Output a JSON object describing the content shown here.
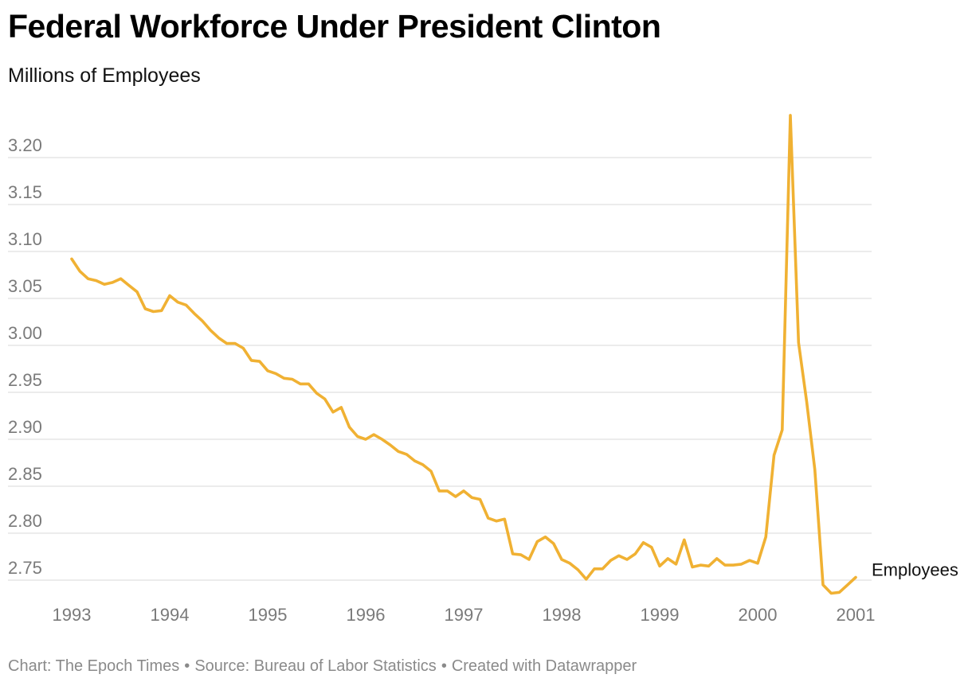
{
  "header": {
    "title": "Federal Workforce Under President Clinton",
    "subtitle": "Millions of Employees"
  },
  "footer": {
    "chart_credit": "Chart: The Epoch Times",
    "source": "Source: Bureau of Labor Statistics",
    "tool": "Created with Datawrapper",
    "separator": "•"
  },
  "colors": {
    "line": "#f0b133",
    "grid": "#e1e1e1",
    "tick_text": "#7a7a7a"
  },
  "chart_data": {
    "type": "line",
    "title": "Federal Workforce Under President Clinton",
    "subtitle": "Millions of Employees",
    "xlabel": "",
    "ylabel": "",
    "xlim": [
      1993,
      2001
    ],
    "ylim": [
      2.73,
      3.25
    ],
    "x_ticks": [
      "1993",
      "1994",
      "1995",
      "1996",
      "1997",
      "1998",
      "1999",
      "2000",
      "2001"
    ],
    "y_ticks": [
      "3.20",
      "3.15",
      "3.10",
      "3.05",
      "3.00",
      "2.95",
      "2.90",
      "2.85",
      "2.80",
      "2.75"
    ],
    "grid": true,
    "legend": "none (series label at end of line)",
    "series": [
      {
        "name": "Employees",
        "values": [
          3.092,
          3.079,
          3.071,
          3.069,
          3.065,
          3.067,
          3.071,
          3.064,
          3.057,
          3.039,
          3.036,
          3.037,
          3.053,
          3.046,
          3.043,
          3.034,
          3.026,
          3.016,
          3.008,
          3.002,
          3.002,
          2.997,
          2.984,
          2.983,
          2.973,
          2.97,
          2.965,
          2.964,
          2.959,
          2.959,
          2.949,
          2.943,
          2.929,
          2.934,
          2.913,
          2.903,
          2.9,
          2.905,
          2.9,
          2.894,
          2.887,
          2.884,
          2.877,
          2.873,
          2.866,
          2.845,
          2.845,
          2.839,
          2.845,
          2.838,
          2.836,
          2.816,
          2.813,
          2.815,
          2.778,
          2.777,
          2.772,
          2.791,
          2.796,
          2.789,
          2.772,
          2.768,
          2.761,
          2.751,
          2.762,
          2.762,
          2.771,
          2.776,
          2.772,
          2.778,
          2.79,
          2.785,
          2.765,
          2.773,
          2.767,
          2.793,
          2.764,
          2.766,
          2.765,
          2.773,
          2.766,
          2.766,
          2.767,
          2.771,
          2.768,
          2.796,
          2.883,
          2.91,
          3.245,
          3.003,
          2.94,
          2.868,
          2.745,
          2.736,
          2.737,
          2.745,
          2.753
        ]
      }
    ]
  }
}
